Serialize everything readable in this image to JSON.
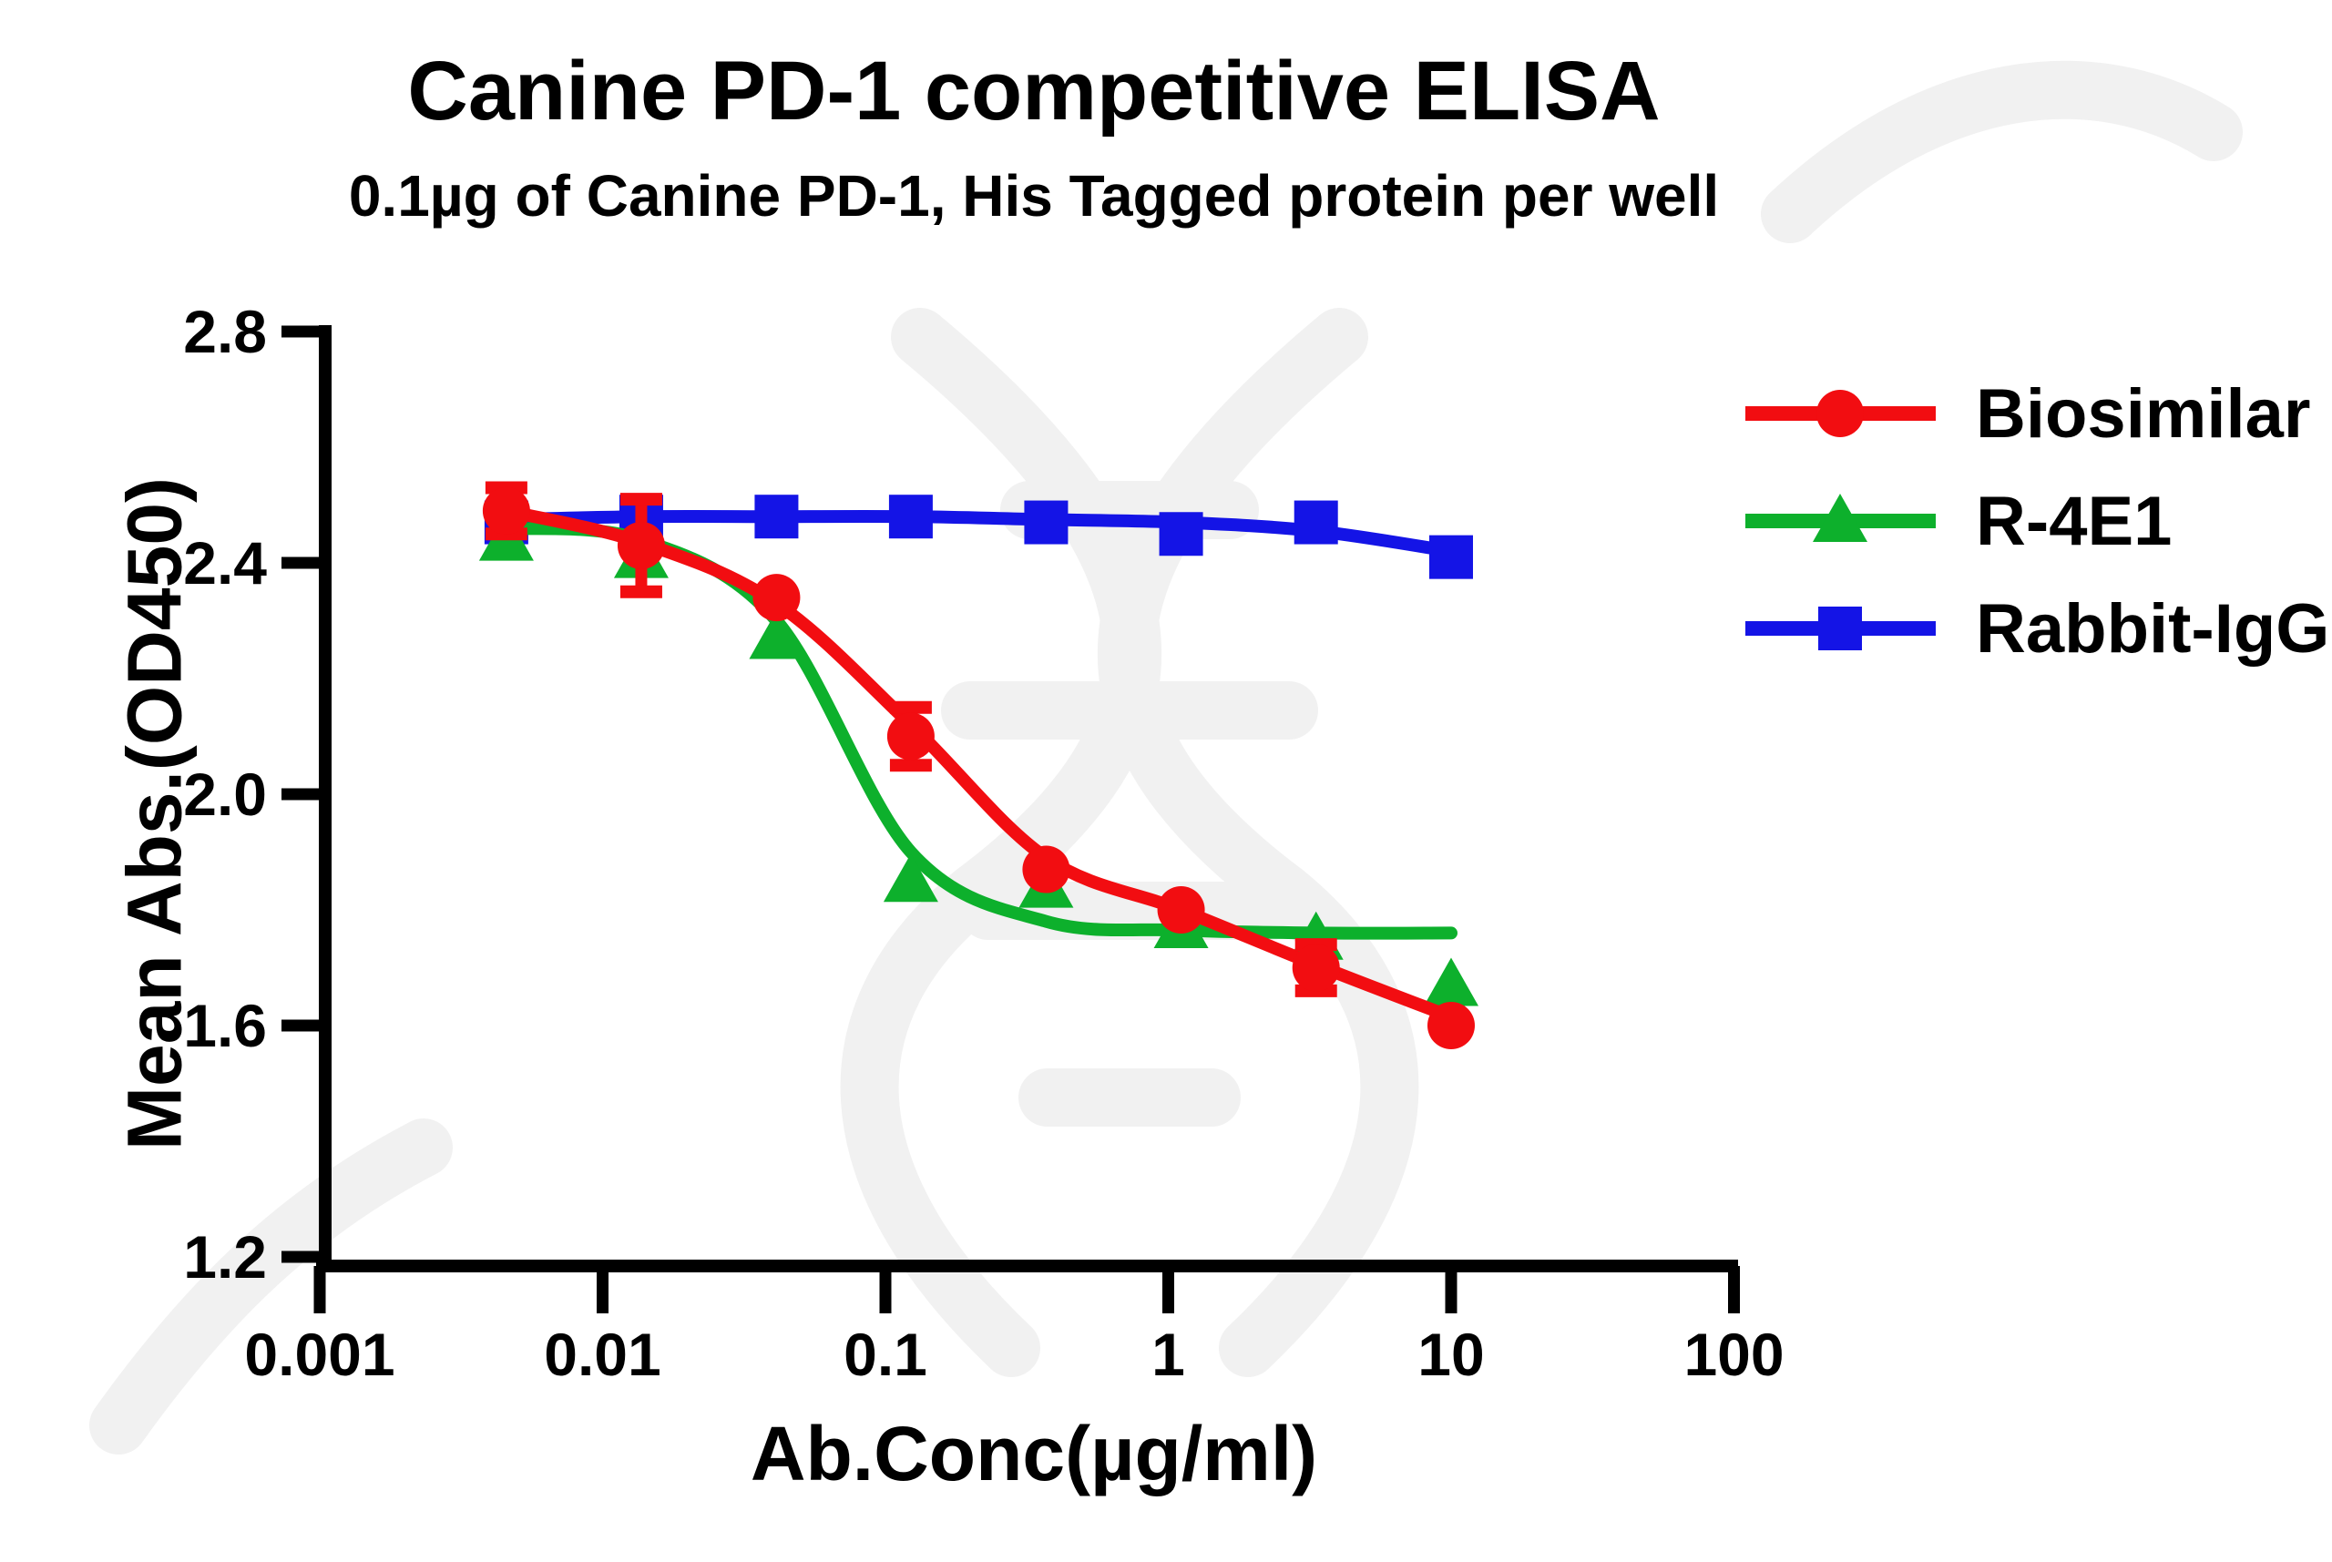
{
  "title": "Canine PD-1 competitive ELISA",
  "subtitle": "0.1µg of Canine PD-1, His Tagged protein per well",
  "chart_data": {
    "type": "line",
    "title": "Canine PD-1 competitive ELISA",
    "subtitle": "0.1µg of Canine PD-1, His Tagged protein per well",
    "xlabel": "Ab.Conc(µg/ml)",
    "ylabel": "Mean Abs.(OD450)",
    "x_scale": "log10",
    "xlim": [
      0.001,
      100
    ],
    "ylim": [
      1.2,
      2.8
    ],
    "grid": false,
    "legend_position": "right",
    "x_ticks": [
      0.001,
      0.01,
      0.1,
      1,
      10,
      100
    ],
    "x_tick_labels": [
      "0.001",
      "0.01",
      "0.1",
      "1",
      "10",
      "100"
    ],
    "y_ticks": [
      2.8,
      2.4,
      2.0,
      1.6,
      1.2
    ],
    "y_tick_labels": [
      "2.8",
      "2.4",
      "2.0",
      "1.6",
      "1.2"
    ],
    "x": [
      0.00457,
      0.0137,
      0.0412,
      0.123,
      0.37,
      1.11,
      3.33,
      10
    ],
    "series": [
      {
        "name": "Biosimilar",
        "color": "#f20d11",
        "marker": "circle",
        "values": [
          2.49,
          2.43,
          2.34,
          2.1,
          1.87,
          1.8,
          1.7,
          1.6
        ],
        "errors": [
          0.04,
          0.08,
          0,
          0.05,
          0,
          0,
          0.04,
          0
        ],
        "trend": {
          "x": [
            0.00457,
            0.0137,
            0.0412,
            0.123,
            0.37,
            1.11,
            3.33,
            10
          ],
          "y": [
            2.49,
            2.435,
            2.33,
            2.12,
            1.89,
            1.8,
            1.705,
            1.615
          ]
        }
      },
      {
        "name": "R-4E1",
        "color": "#0db02c",
        "marker": "triangle",
        "values": [
          2.44,
          2.41,
          2.27,
          1.85,
          1.84,
          1.77,
          1.75,
          1.67
        ],
        "errors": [
          0,
          0,
          0,
          0,
          0,
          0,
          0,
          0
        ],
        "trend": {
          "x": [
            0.00457,
            0.0137,
            0.0412,
            0.123,
            0.37,
            1.11,
            3.33,
            10
          ],
          "y": [
            2.46,
            2.44,
            2.3,
            1.9,
            1.78,
            1.765,
            1.76,
            1.76
          ]
        }
      },
      {
        "name": "Rabbit-IgG",
        "color": "#1414e6",
        "marker": "square",
        "values": [
          2.47,
          2.48,
          2.48,
          2.48,
          2.47,
          2.45,
          2.47,
          2.41
        ],
        "errors": [
          0,
          0,
          0,
          0,
          0,
          0,
          0,
          0
        ],
        "trend": {
          "x": [
            0.00457,
            0.0137,
            0.0412,
            0.123,
            0.37,
            1.11,
            3.33,
            10
          ],
          "y": [
            2.475,
            2.48,
            2.48,
            2.48,
            2.475,
            2.47,
            2.455,
            2.42
          ]
        }
      }
    ]
  }
}
